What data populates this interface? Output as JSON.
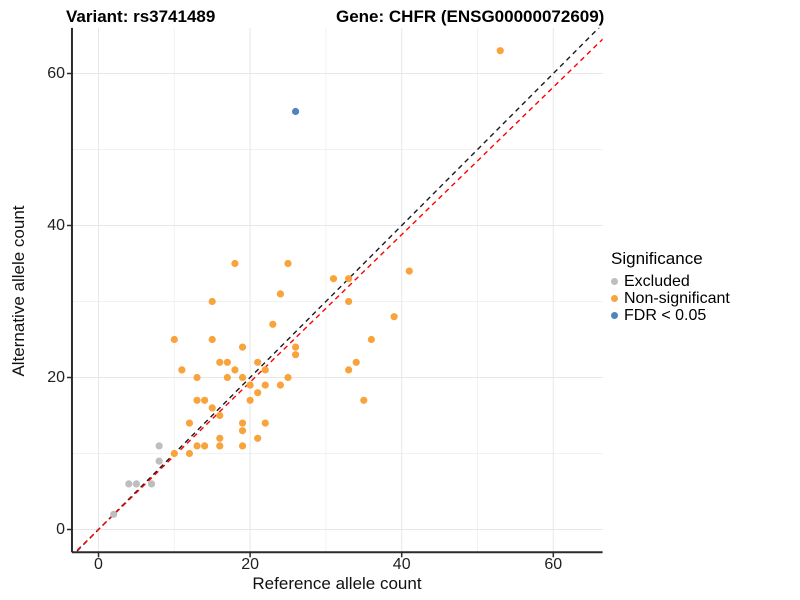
{
  "title": {
    "variant": "Variant: rs3741489",
    "gene": "Gene: CHFR (ENSG00000072609)"
  },
  "axes": {
    "x_label": "Reference allele count",
    "y_label": "Alternative allele count"
  },
  "legend": {
    "title": "Significance",
    "items": [
      {
        "label": "Excluded",
        "color": "#BEBEBE"
      },
      {
        "label": "Non-significant",
        "color": "#F9A33C"
      },
      {
        "label": "FDR < 0.05",
        "color": "#4E86BC"
      }
    ]
  },
  "chart_data": {
    "type": "scatter",
    "title": "Variant: rs3741489 | Gene: CHFR (ENSG00000072609)",
    "xlabel": "Reference allele count",
    "ylabel": "Alternative allele count",
    "xlim": [
      -3.5,
      66.5
    ],
    "ylim": [
      -3,
      66
    ],
    "x_ticks": [
      0,
      20,
      40,
      60
    ],
    "y_ticks": [
      0,
      20,
      40,
      60
    ],
    "minor_gridlines_x": [
      10,
      30,
      50
    ],
    "minor_gridlines_y": [
      10,
      30,
      50
    ],
    "grid": true,
    "legend_position": "right",
    "legend_title": "Significance",
    "series": [
      {
        "name": "Excluded",
        "color": "#BEBEBE",
        "points": [
          [
            2,
            2
          ],
          [
            4,
            6
          ],
          [
            5,
            6
          ],
          [
            7,
            6
          ],
          [
            8,
            9
          ],
          [
            8,
            11
          ]
        ]
      },
      {
        "name": "Non-significant",
        "color": "#F9A33C",
        "points": [
          [
            10,
            10
          ],
          [
            10,
            25
          ],
          [
            11,
            21
          ],
          [
            12,
            10
          ],
          [
            12,
            14
          ],
          [
            13,
            11
          ],
          [
            13,
            17
          ],
          [
            13,
            20
          ],
          [
            14,
            11
          ],
          [
            14,
            17
          ],
          [
            15,
            16
          ],
          [
            15,
            25
          ],
          [
            15,
            30
          ],
          [
            16,
            11
          ],
          [
            16,
            12
          ],
          [
            16,
            15
          ],
          [
            16,
            22
          ],
          [
            17,
            20
          ],
          [
            17,
            22
          ],
          [
            18,
            21
          ],
          [
            18,
            35
          ],
          [
            19,
            11
          ],
          [
            19,
            13
          ],
          [
            19,
            14
          ],
          [
            19,
            20
          ],
          [
            19,
            24
          ],
          [
            20,
            17
          ],
          [
            20,
            19
          ],
          [
            21,
            12
          ],
          [
            21,
            18
          ],
          [
            21,
            22
          ],
          [
            22,
            14
          ],
          [
            22,
            19
          ],
          [
            22,
            21
          ],
          [
            23,
            27
          ],
          [
            24,
            19
          ],
          [
            24,
            31
          ],
          [
            25,
            20
          ],
          [
            25,
            35
          ],
          [
            26,
            23
          ],
          [
            26,
            24
          ],
          [
            31,
            33
          ],
          [
            33,
            21
          ],
          [
            33,
            30
          ],
          [
            33,
            33
          ],
          [
            34,
            22
          ],
          [
            35,
            17
          ],
          [
            36,
            25
          ],
          [
            39,
            28
          ],
          [
            41,
            34
          ],
          [
            53,
            63
          ]
        ]
      },
      {
        "name": "FDR < 0.05",
        "color": "#4E86BC",
        "points": [
          [
            26,
            55
          ]
        ]
      }
    ],
    "reference_lines": [
      {
        "name": "identity",
        "slope": 1,
        "intercept": 0,
        "color": "#1a1a1a",
        "style": "dashed"
      },
      {
        "name": "expected-ratio",
        "slope": 0.97,
        "intercept": 0,
        "color": "#FF0000",
        "style": "dashed"
      }
    ]
  }
}
